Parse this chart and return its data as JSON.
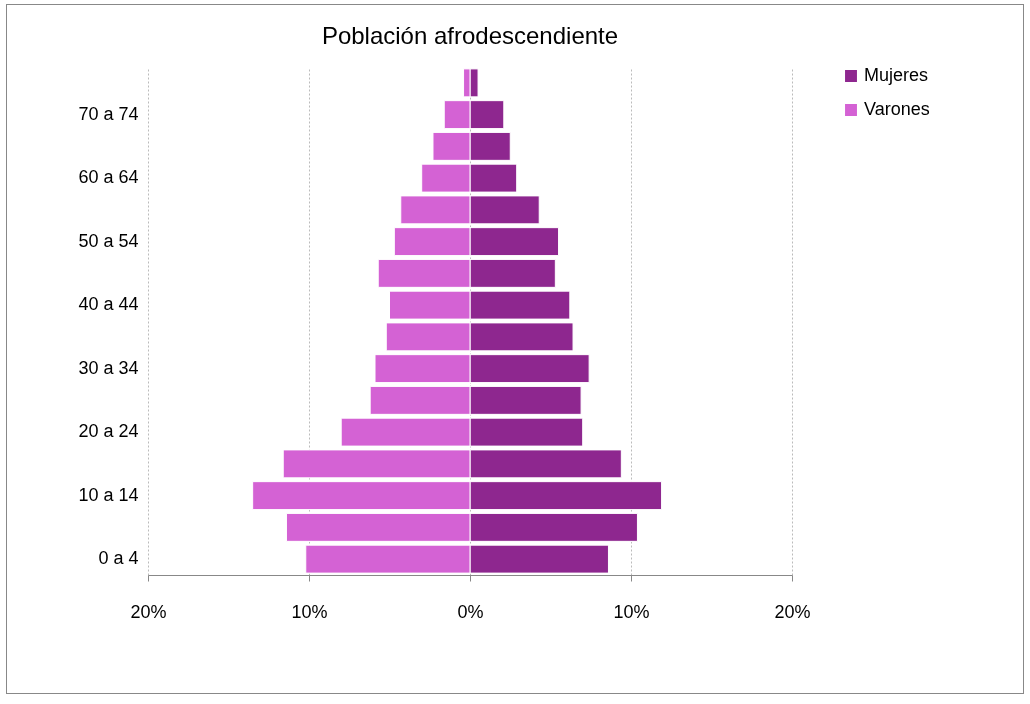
{
  "chart_data": {
    "type": "bar",
    "title": "Población afrodescendiente",
    "orientation": "horizontal",
    "stacked": true,
    "categories": [
      null,
      "70 a 74",
      null,
      "60 a 64",
      null,
      "50 a 54",
      null,
      "40 a 44",
      null,
      "30 a 34",
      null,
      "20 a 24",
      null,
      "10 a 14",
      null,
      "0 a 4"
    ],
    "series": [
      {
        "name": "Mujeres",
        "color": "#8e278f",
        "values": [
          0.5,
          2.1,
          2.5,
          2.9,
          4.3,
          5.5,
          5.3,
          6.2,
          6.4,
          7.4,
          6.9,
          7.0,
          9.4,
          11.9,
          10.4,
          8.6
        ]
      },
      {
        "name": "Varones",
        "color": "#d462d4",
        "values": [
          -0.4,
          -1.6,
          -2.3,
          -3.0,
          -4.3,
          -4.7,
          -5.7,
          -5.0,
          -5.2,
          -5.9,
          -6.2,
          -8.0,
          -11.6,
          -13.5,
          -11.4,
          -10.2
        ]
      }
    ],
    "xlim": [
      -20,
      20
    ],
    "xticks": [
      {
        "value": -20,
        "label": "20%"
      },
      {
        "value": -10,
        "label": "10%"
      },
      {
        "value": 0,
        "label": "0%"
      },
      {
        "value": 10,
        "label": "10%"
      },
      {
        "value": 20,
        "label": "20%"
      }
    ],
    "grid": "x",
    "legend": "right"
  }
}
